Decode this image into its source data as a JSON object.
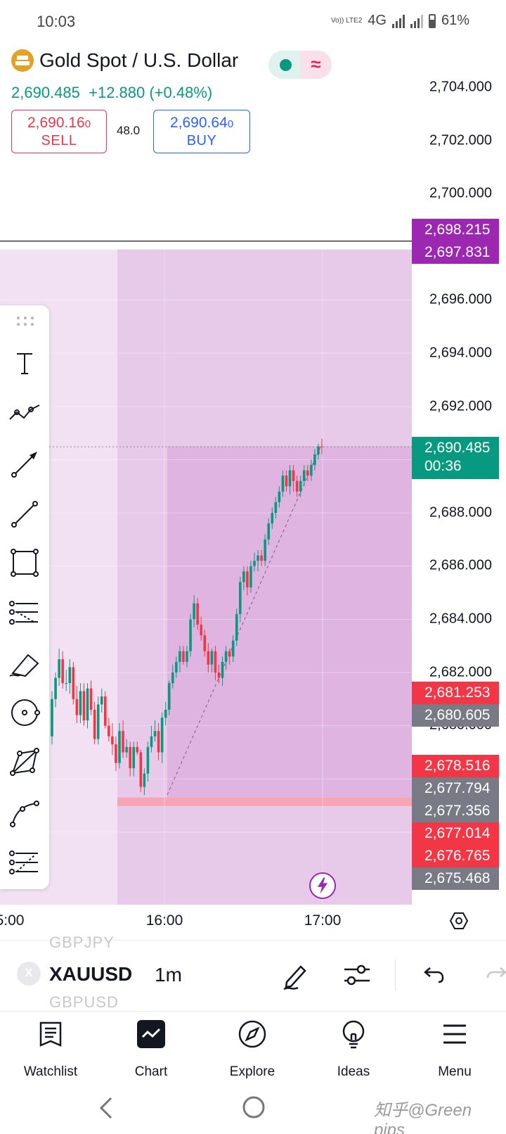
{
  "status_bar": {
    "time": "10:03",
    "network": "4G",
    "volte": "Vo)) LTE2",
    "battery": "61%"
  },
  "header": {
    "symbol_title": "Gold Spot / U.S. Dollar",
    "last_price": "2,690.485",
    "change": "+12.880 (+0.48%)",
    "sell": {
      "price": "2,690.16",
      "pip": "0",
      "label": "SELL"
    },
    "buy": {
      "price": "2,690.64",
      "pip": "0",
      "label": "BUY"
    },
    "spread": "48.0"
  },
  "price_axis": {
    "ticks": [
      "2,704.000",
      "2,702.000",
      "2,700.000",
      "2,696.000",
      "2,694.000",
      "2,692.000",
      "2,688.000",
      "2,686.000",
      "2,684.000",
      "2,682.000",
      "2,680.000"
    ],
    "tags": [
      {
        "value": "2,698.215",
        "color": "#9c27b0"
      },
      {
        "value": "2,697.831",
        "color": "#9c27b0"
      },
      {
        "value": "2,681.253",
        "color": "#f23645"
      },
      {
        "value": "2,680.605",
        "color": "#787b86"
      },
      {
        "value": "2,678.516",
        "color": "#f23645"
      },
      {
        "value": "2,677.794",
        "color": "#787b86"
      },
      {
        "value": "2,677.356",
        "color": "#787b86"
      },
      {
        "value": "2,677.014",
        "color": "#f23645"
      },
      {
        "value": "2,676.765",
        "color": "#f23645"
      },
      {
        "value": "2,675.468",
        "color": "#787b86"
      }
    ],
    "current": {
      "value": "2,690.485",
      "countdown": "00:36",
      "color": "#089981"
    }
  },
  "time_axis": [
    "5:00",
    "16:00",
    "17:00"
  ],
  "chart_data": {
    "type": "candlestick",
    "symbol": "XAUUSD",
    "interval": "1m",
    "xlabel": "",
    "ylabel": "",
    "ylim": [
      2675.0,
      2705.0
    ],
    "x": [
      "15:44",
      "15:45",
      "15:46",
      "15:47",
      "15:48",
      "15:49",
      "15:50",
      "15:51",
      "15:52",
      "15:53",
      "15:54",
      "15:55",
      "15:56",
      "15:57",
      "15:58",
      "15:59",
      "16:00",
      "16:01",
      "16:02",
      "16:03",
      "16:04",
      "16:05",
      "16:06",
      "16:07",
      "16:08",
      "16:09",
      "16:10",
      "16:11",
      "16:12",
      "16:13",
      "16:14",
      "16:15",
      "16:16",
      "16:17",
      "16:18",
      "16:19",
      "16:20",
      "16:21",
      "16:22",
      "16:23",
      "16:24",
      "16:25",
      "16:26",
      "16:27",
      "16:28",
      "16:29",
      "16:30",
      "16:31",
      "16:32",
      "16:33",
      "16:34",
      "16:35",
      "16:36",
      "16:37",
      "16:38",
      "16:39",
      "16:40",
      "16:41",
      "16:42",
      "16:43",
      "16:44",
      "16:45",
      "16:46",
      "16:47",
      "16:48",
      "16:49",
      "16:50",
      "16:51",
      "16:52",
      "16:53",
      "16:54",
      "16:55",
      "16:56",
      "16:57",
      "16:58",
      "16:59",
      "17:00"
    ],
    "open": [
      2679.6,
      2681.0,
      2681.8,
      2682.5,
      2681.6,
      2681.6,
      2682.2,
      2681.0,
      2680.4,
      2681.3,
      2680.2,
      2681.4,
      2680.6,
      2679.5,
      2680.8,
      2681.1,
      2680.0,
      2679.6,
      2679.3,
      2678.6,
      2679.8,
      2679.0,
      2679.2,
      2678.4,
      2679.2,
      2679.0,
      2677.7,
      2678.2,
      2679.2,
      2679.6,
      2679.8,
      2679.0,
      2680.3,
      2680.6,
      2681.6,
      2682.0,
      2682.4,
      2682.8,
      2682.4,
      2682.8,
      2684.0,
      2684.6,
      2683.8,
      2683.4,
      2682.8,
      2682.3,
      2682.8,
      2682.0,
      2681.8,
      2682.4,
      2682.8,
      2682.6,
      2683.2,
      2684.2,
      2685.4,
      2685.8,
      2685.2,
      2686.0,
      2686.2,
      2686.4,
      2686.2,
      2687.0,
      2687.6,
      2688.0,
      2688.4,
      2688.8,
      2689.4,
      2689.0,
      2689.6,
      2689.2,
      2688.8,
      2689.2,
      2689.6,
      2689.4,
      2689.8,
      2690.2,
      2690.5
    ],
    "high": [
      2681.3,
      2682.0,
      2682.9,
      2682.8,
      2682.1,
      2682.5,
      2682.4,
      2681.5,
      2681.6,
      2681.6,
      2681.6,
      2681.7,
      2680.9,
      2681.1,
      2681.4,
      2681.3,
      2680.3,
      2680.1,
      2679.6,
      2680.1,
      2680.2,
      2679.5,
      2679.4,
      2679.4,
      2679.4,
      2679.1,
      2678.4,
      2679.4,
      2680.0,
      2680.2,
      2680.1,
      2680.5,
      2680.9,
      2681.7,
      2682.3,
      2682.6,
      2683.0,
      2683.0,
      2683.0,
      2684.2,
      2684.9,
      2684.8,
      2684.1,
      2683.6,
      2683.1,
      2682.9,
      2683.0,
      2682.3,
      2682.6,
      2683.0,
      2682.9,
      2683.4,
      2684.4,
      2685.6,
      2686.0,
      2686.0,
      2686.2,
      2686.5,
      2686.6,
      2686.6,
      2687.2,
      2687.8,
      2688.2,
      2688.6,
      2689.0,
      2689.6,
      2689.6,
      2689.8,
      2689.8,
      2689.4,
      2689.4,
      2689.8,
      2689.8,
      2690.0,
      2690.4,
      2690.6,
      2690.8
    ],
    "low": [
      2679.3,
      2680.7,
      2681.5,
      2681.4,
      2681.3,
      2681.2,
      2680.8,
      2680.1,
      2680.1,
      2680.0,
      2679.9,
      2680.4,
      2679.3,
      2679.3,
      2680.5,
      2679.9,
      2679.4,
      2678.9,
      2678.3,
      2678.4,
      2678.8,
      2678.8,
      2678.1,
      2678.1,
      2678.9,
      2677.5,
      2677.4,
      2677.9,
      2679.0,
      2679.4,
      2678.7,
      2678.6,
      2680.0,
      2680.4,
      2681.4,
      2681.8,
      2682.0,
      2682.3,
      2682.2,
      2682.6,
      2683.7,
      2683.6,
      2683.2,
      2682.6,
      2682.0,
      2682.0,
      2681.7,
      2681.6,
      2681.5,
      2682.1,
      2682.3,
      2682.4,
      2683.0,
      2683.9,
      2685.1,
      2684.9,
      2685.0,
      2685.8,
      2685.8,
      2686.0,
      2686.0,
      2686.8,
      2687.4,
      2687.8,
      2688.2,
      2688.6,
      2688.8,
      2688.7,
      2688.8,
      2688.6,
      2688.6,
      2689.0,
      2689.2,
      2689.2,
      2689.6,
      2690.0,
      2690.2
    ],
    "close": [
      2681.0,
      2681.8,
      2682.5,
      2681.6,
      2681.6,
      2682.2,
      2681.0,
      2680.4,
      2681.3,
      2680.2,
      2681.4,
      2680.6,
      2679.5,
      2680.8,
      2681.1,
      2680.0,
      2679.6,
      2679.3,
      2678.6,
      2679.8,
      2679.0,
      2679.2,
      2678.4,
      2679.2,
      2679.0,
      2677.7,
      2678.2,
      2679.2,
      2679.6,
      2679.8,
      2679.0,
      2680.3,
      2680.6,
      2681.6,
      2682.0,
      2682.4,
      2682.8,
      2682.4,
      2682.8,
      2684.0,
      2684.6,
      2683.8,
      2683.4,
      2682.8,
      2682.3,
      2682.8,
      2682.0,
      2681.8,
      2682.4,
      2682.8,
      2682.6,
      2683.2,
      2684.2,
      2685.4,
      2685.8,
      2685.2,
      2686.0,
      2686.2,
      2686.4,
      2686.2,
      2687.0,
      2687.6,
      2688.0,
      2688.4,
      2688.8,
      2689.4,
      2689.0,
      2689.6,
      2689.2,
      2688.8,
      2689.2,
      2689.6,
      2689.4,
      2689.8,
      2690.2,
      2690.5,
      2690.485
    ],
    "colors": {
      "up": "#089981",
      "down": "#f23645",
      "zone": "#9c27b0",
      "stop": "#f7a5b5"
    }
  },
  "toolbar": {
    "tools": [
      "text-tool-icon",
      "trend-path-icon",
      "arrow-line-icon",
      "trend-line-icon",
      "rectangle-icon",
      "fib-retracement-icon",
      "brush-icon",
      "circle-icon",
      "polygon-icon",
      "path-icon",
      "pattern-icon"
    ]
  },
  "control_bar": {
    "ghost_above": "GBPJPY",
    "ticker": "XAUUSD",
    "ghost_below": "GBPUSD",
    "close_chip": "X",
    "interval": "1m"
  },
  "bottom_nav": [
    {
      "label": "Watchlist",
      "icon": "watchlist-icon"
    },
    {
      "label": "Chart",
      "icon": "chart-icon"
    },
    {
      "label": "Explore",
      "icon": "compass-icon"
    },
    {
      "label": "Ideas",
      "icon": "lightbulb-icon"
    },
    {
      "label": "Menu",
      "icon": "menu-icon"
    }
  ],
  "watermark": "知乎@Green pips"
}
